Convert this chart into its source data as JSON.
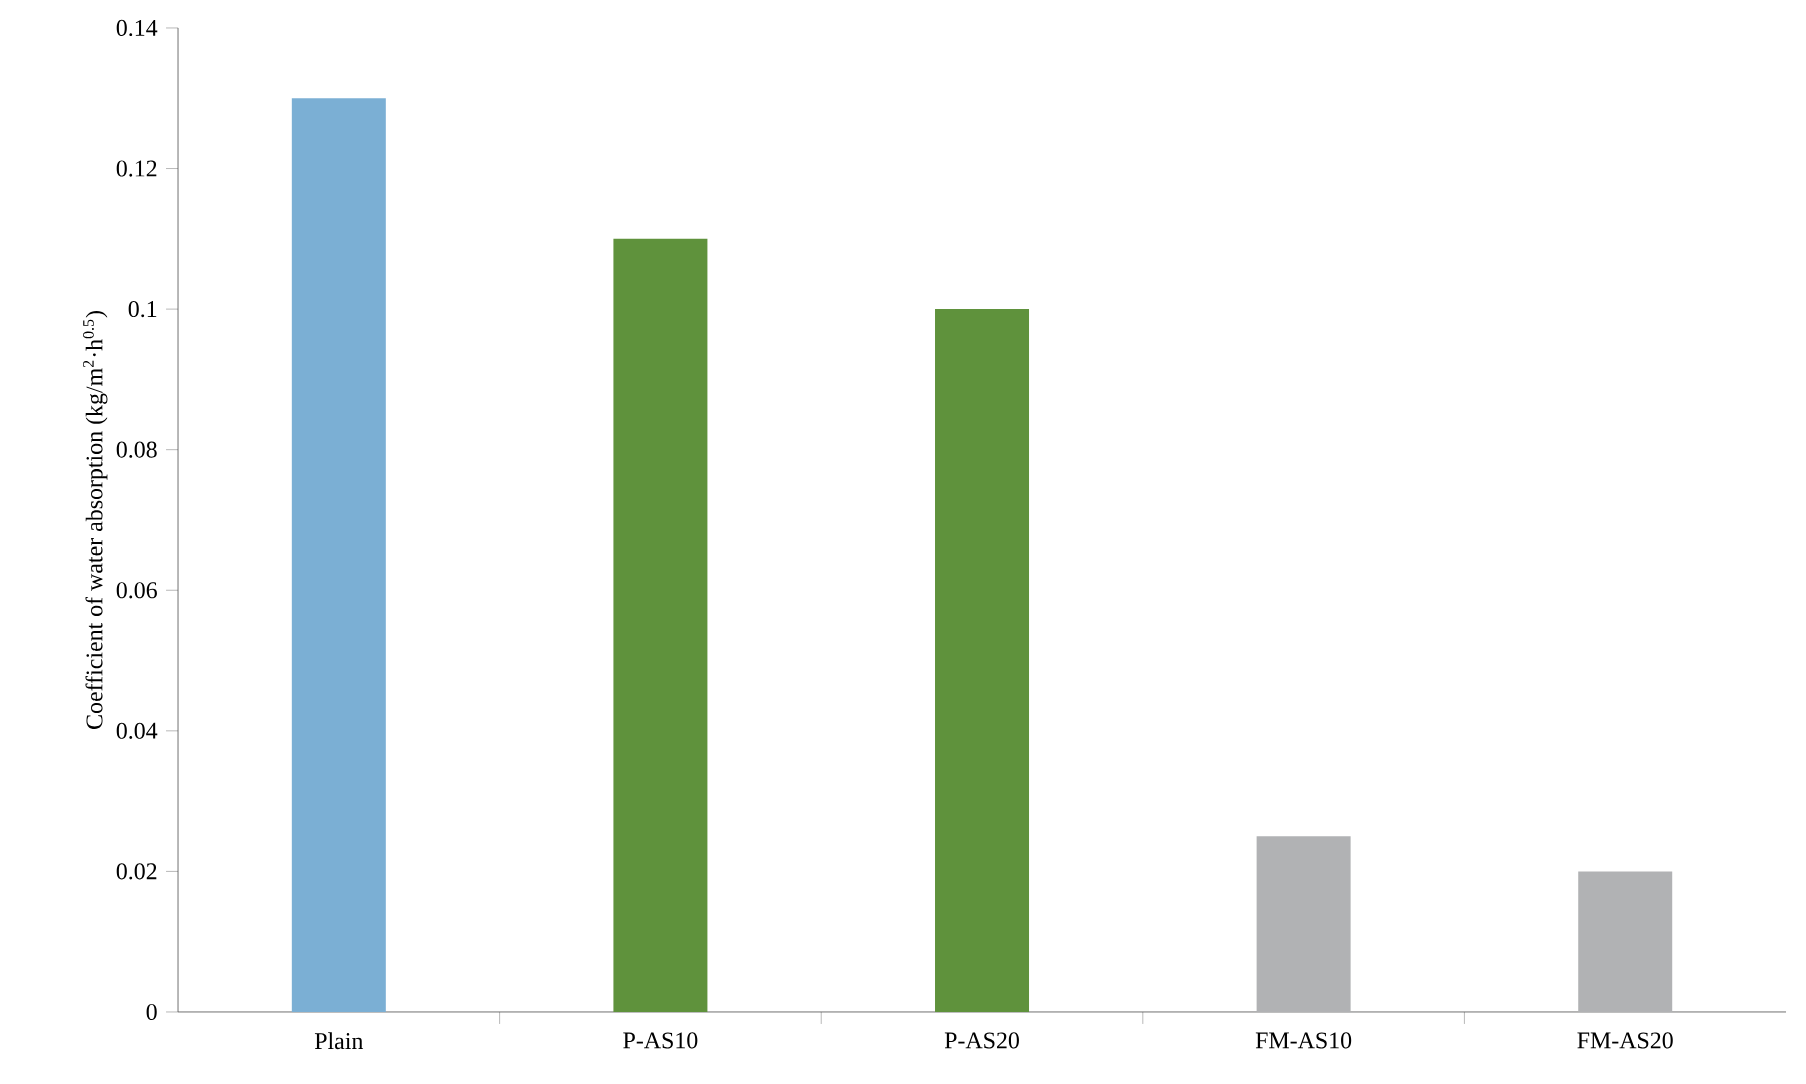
{
  "chart_data": {
    "type": "bar",
    "ylabel": "Coefficient of water absorption (kg/m$^{2}$·h$^{0.5}$)",
    "categories": [
      "Plain",
      "P-AS10",
      "P-AS20",
      "FM-AS10",
      "FM-AS20"
    ],
    "values": [
      0.13,
      0.11,
      0.1,
      0.025,
      0.02
    ],
    "colors": [
      "#7bafd4",
      "#5f923c",
      "#5f923c",
      "#b1b2b4",
      "#b1b2b4"
    ],
    "ylim": [
      0,
      0.14
    ],
    "yticks": [
      0,
      0.02,
      0.04,
      0.06,
      0.08,
      0.1,
      0.12,
      0.14
    ],
    "grid": false
  }
}
